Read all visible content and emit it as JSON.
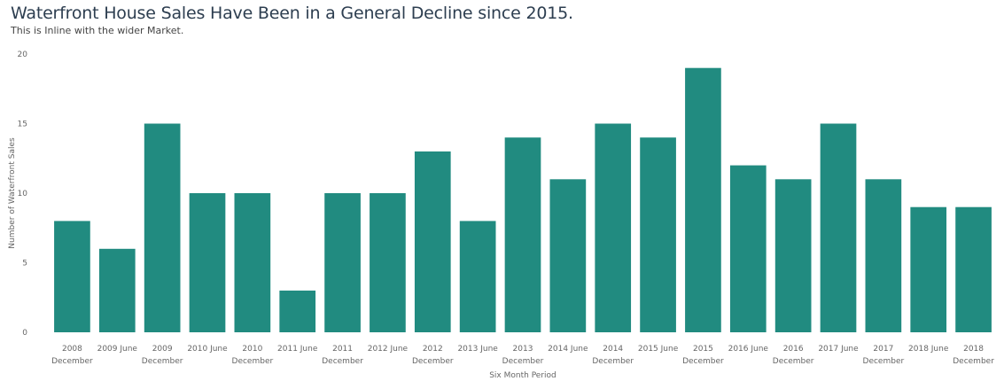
{
  "chart_data": {
    "type": "bar",
    "title": "Waterfront House Sales Have Been in a General Decline since 2015.",
    "subtitle": "This is Inline with the wider Market.",
    "xlabel": "Six Month Period",
    "ylabel": "Number of Waterfront Sales",
    "ylim": [
      0,
      20
    ],
    "yticks": [
      "0",
      "5",
      "10",
      "15",
      "20"
    ],
    "grid": false,
    "bar_color": "#218b80",
    "categories": [
      [
        "2008",
        "December"
      ],
      [
        "2009 June"
      ],
      [
        "2009",
        "December"
      ],
      [
        "2010 June"
      ],
      [
        "2010",
        "December"
      ],
      [
        "2011 June"
      ],
      [
        "2011",
        "December"
      ],
      [
        "2012 June"
      ],
      [
        "2012",
        "December"
      ],
      [
        "2013 June"
      ],
      [
        "2013",
        "December"
      ],
      [
        "2014 June"
      ],
      [
        "2014",
        "December"
      ],
      [
        "2015 June"
      ],
      [
        "2015",
        "December"
      ],
      [
        "2016 June"
      ],
      [
        "2016",
        "December"
      ],
      [
        "2017 June"
      ],
      [
        "2017",
        "December"
      ],
      [
        "2018 June"
      ],
      [
        "2018",
        "December"
      ]
    ],
    "values": [
      8,
      6,
      15,
      10,
      10,
      3,
      10,
      10,
      13,
      8,
      14,
      11,
      15,
      14,
      19,
      12,
      11,
      15,
      11,
      9,
      9
    ]
  }
}
